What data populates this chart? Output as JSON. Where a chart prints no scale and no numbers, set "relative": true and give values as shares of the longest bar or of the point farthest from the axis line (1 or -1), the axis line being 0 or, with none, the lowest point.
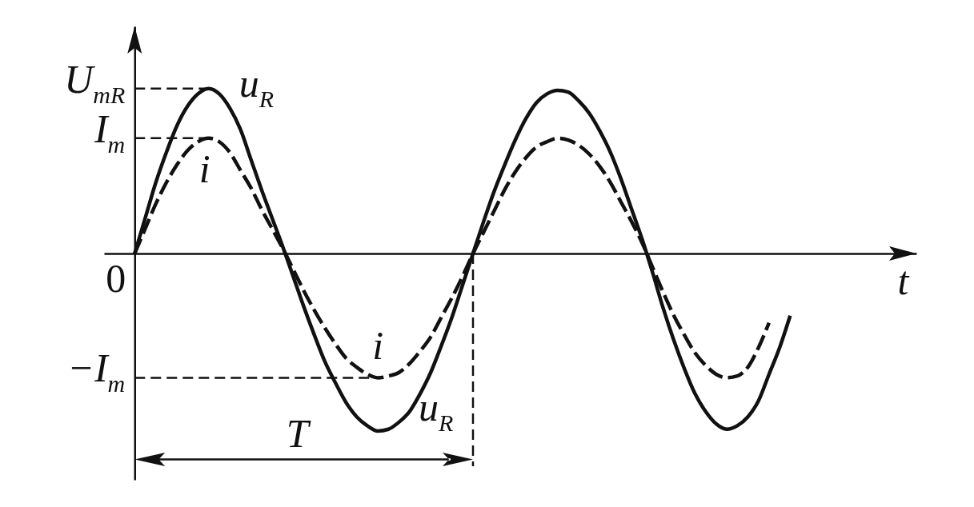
{
  "chart_data": {
    "type": "line",
    "xlabel": "t",
    "relative": true,
    "categories": [
      null,
      null,
      null,
      null,
      null,
      null,
      null,
      null,
      null,
      null,
      null,
      null,
      null,
      null,
      null,
      null,
      null,
      null,
      null,
      null,
      null,
      null,
      null,
      null,
      null,
      null,
      null,
      null,
      null,
      null,
      null,
      null,
      null,
      null,
      null,
      null,
      null,
      null,
      null,
      null,
      null,
      null,
      null,
      null,
      null,
      null,
      null,
      null,
      null,
      null,
      null,
      null,
      null,
      null,
      null,
      null,
      null,
      null,
      null,
      null,
      null,
      null,
      null
    ],
    "series": [
      {
        "name": "u$_{R}$",
        "color": "#111111",
        "line_style": "solid",
        "values": [
          0,
          0.2,
          0.4,
          0.57,
          0.72,
          0.83,
          0.9,
          0.93,
          0.9,
          0.82,
          0.7,
          0.53,
          0.36,
          0.2,
          0.04,
          -0.13,
          -0.3,
          -0.46,
          -0.61,
          -0.73,
          -0.84,
          -0.92,
          -0.97,
          -1,
          -0.99,
          -0.95,
          -0.89,
          -0.79,
          -0.67,
          -0.52,
          -0.36,
          -0.18,
          0,
          0.18,
          0.35,
          0.5,
          0.64,
          0.76,
          0.85,
          0.9,
          0.92,
          0.91,
          0.86,
          0.79,
          0.69,
          0.57,
          0.42,
          0.25,
          0.08,
          -0.11,
          -0.31,
          -0.49,
          -0.65,
          -0.79,
          -0.89,
          -0.96,
          -0.99,
          -0.97,
          -0.92,
          -0.83,
          -0.68,
          -0.53,
          -0.35
        ]
      },
      {
        "name": "i",
        "color": "#111111",
        "line_style": "dashed",
        "values": [
          0,
          0.14,
          0.28,
          0.4,
          0.5,
          0.58,
          0.63,
          0.65,
          0.63,
          0.57,
          0.47,
          0.37,
          0.25,
          0.14,
          0.03,
          -0.09,
          -0.21,
          -0.32,
          -0.42,
          -0.51,
          -0.59,
          -0.64,
          -0.68,
          -0.7,
          -0.69,
          -0.67,
          -0.62,
          -0.55,
          -0.47,
          -0.36,
          -0.25,
          -0.13,
          0,
          0.12,
          0.24,
          0.36,
          0.46,
          0.54,
          0.6,
          0.63,
          0.65,
          0.64,
          0.61,
          0.56,
          0.49,
          0.4,
          0.29,
          0.18,
          0.06,
          -0.08,
          -0.22,
          -0.35,
          -0.46,
          -0.56,
          -0.63,
          -0.68,
          -0.7,
          -0.69,
          -0.64,
          -0.53,
          -0.39,
          null,
          null
        ]
      }
    ],
    "ref_lines": [
      {
        "axis": "y",
        "value": 0.93,
        "label": "U$_{mR}$",
        "line_style": "dashed"
      },
      {
        "axis": "y",
        "value": 0.65,
        "label": "I$_{m}$",
        "line_style": "dashed"
      },
      {
        "axis": "y",
        "value": -0.7,
        "label": "−I$_{m}$",
        "line_style": "dashed"
      }
    ],
    "annotations": [
      "0",
      "T"
    ]
  }
}
